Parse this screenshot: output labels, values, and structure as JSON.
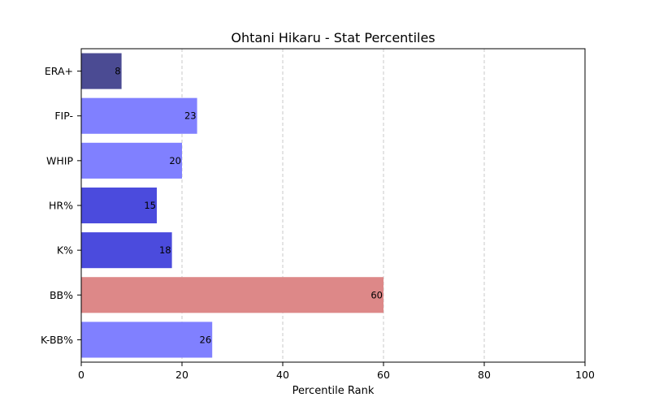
{
  "chart_data": {
    "type": "bar",
    "orientation": "horizontal",
    "title": "Ohtani Hikaru - Stat Percentiles",
    "xlabel": "Percentile Rank",
    "ylabel": "",
    "xlim": [
      0,
      100
    ],
    "xticks": [
      0,
      20,
      40,
      60,
      80,
      100
    ],
    "grid": "x dashed",
    "categories": [
      "ERA+",
      "FIP-",
      "WHIP",
      "HR%",
      "K%",
      "BB%",
      "K-BB%"
    ],
    "values": [
      8,
      23,
      20,
      15,
      18,
      60,
      26
    ],
    "colors": [
      "#4b4b93",
      "#8080ff",
      "#8080ff",
      "#4b4bdd",
      "#4b4bdd",
      "#dd8888",
      "#8080ff"
    ]
  }
}
